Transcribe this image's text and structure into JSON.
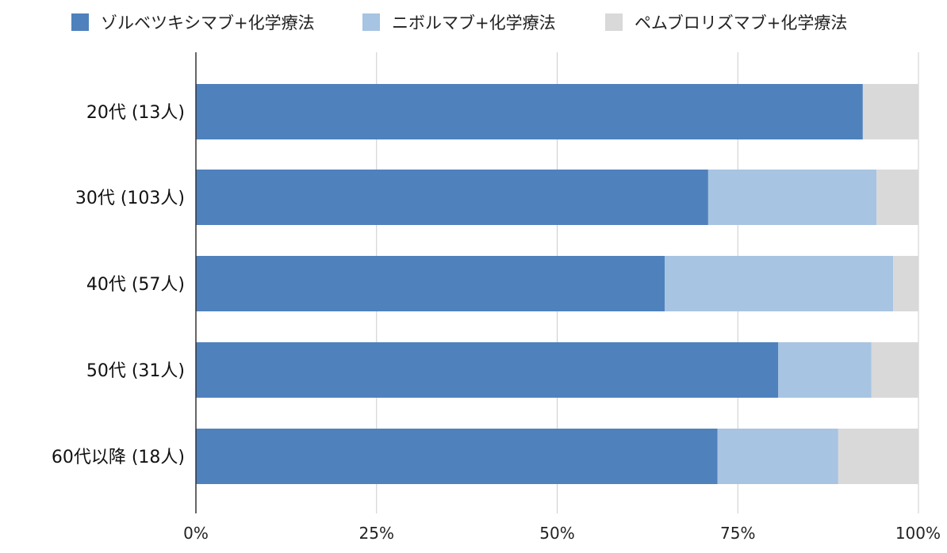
{
  "chart_data": {
    "type": "bar",
    "orientation": "horizontal",
    "stacked": true,
    "normalized_percent": true,
    "categories": [
      "20代 (13人)",
      "30代 (103人)",
      "40代 (57人)",
      "50代 (31人)",
      "60代以降 (18人)"
    ],
    "series": [
      {
        "name": "ゾルベツキシマブ+化学療法",
        "color": "#4f81bd",
        "values": [
          92.3,
          70.9,
          64.9,
          80.6,
          72.2
        ]
      },
      {
        "name": "ニボルマブ+化学療法",
        "color": "#a7c4e2",
        "values": [
          0,
          23.3,
          31.6,
          12.9,
          16.7
        ]
      },
      {
        "name": "ペムブロリズマブ+化学療法",
        "color": "#d9d9d9",
        "values": [
          7.7,
          5.8,
          3.5,
          6.5,
          11.1
        ]
      }
    ],
    "x_ticks": [
      "0%",
      "25%",
      "50%",
      "75%",
      "100%"
    ],
    "xlim": [
      0,
      100
    ],
    "grid": true,
    "legend_position": "top"
  }
}
